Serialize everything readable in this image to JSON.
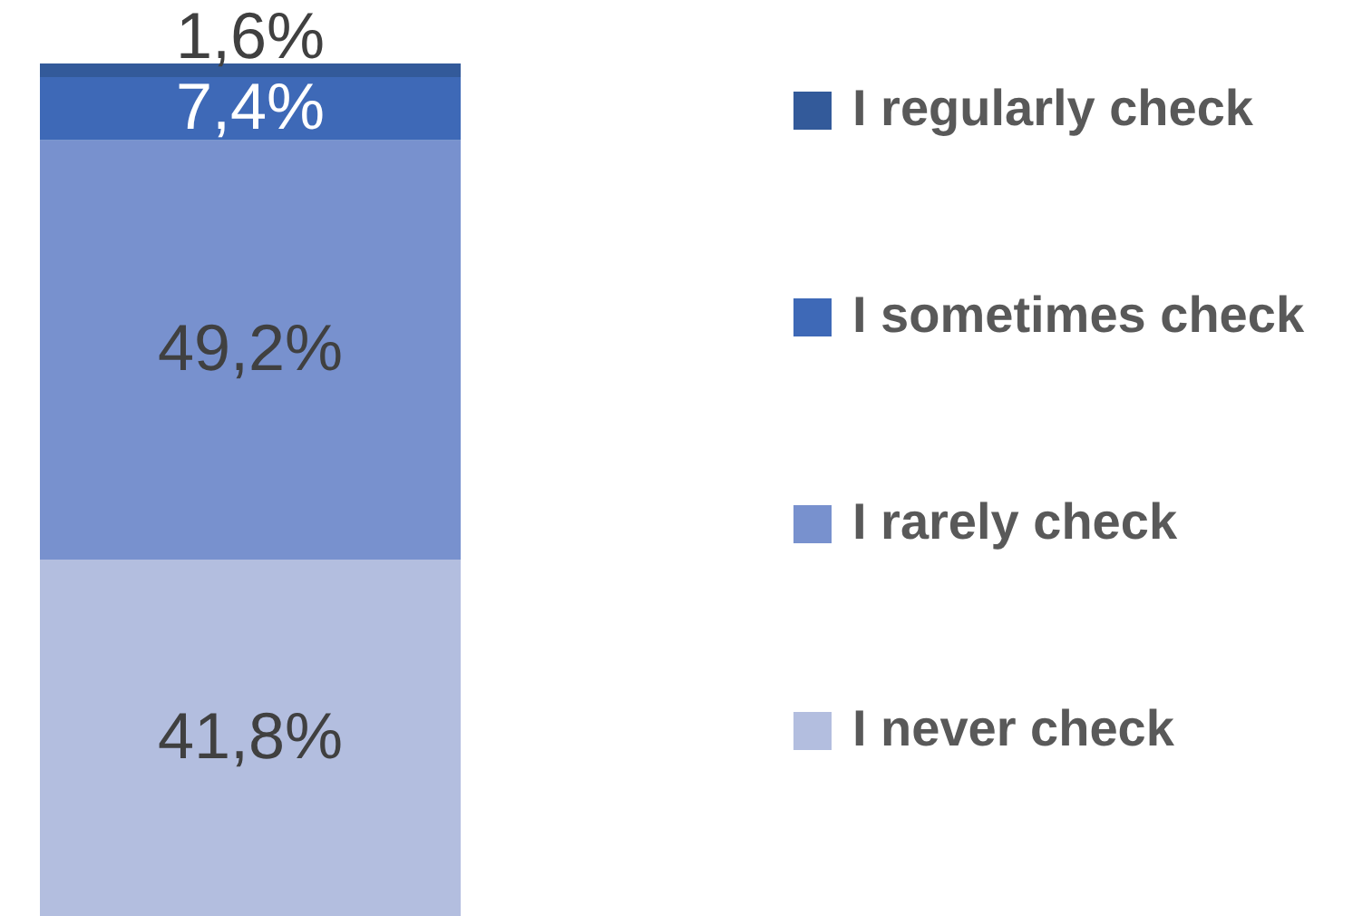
{
  "chart_data": {
    "type": "bar",
    "categories": [
      null
    ],
    "stacked": true,
    "legend": "right",
    "tick_labels": false,
    "series": [
      {
        "name": "I never check",
        "color": "#b3bedf",
        "values": [
          41.8
        ],
        "value_labels": [
          "41,8%"
        ]
      },
      {
        "name": "I rarely check",
        "color": "#7891ce",
        "values": [
          49.2
        ],
        "value_labels": [
          "49,2%"
        ]
      },
      {
        "name": "I sometimes check",
        "color": "#3e69b7",
        "values": [
          7.4
        ],
        "value_labels": [
          "7,4%"
        ]
      },
      {
        "name": "I regularly check",
        "color": "#335a9a",
        "values": [
          1.6
        ],
        "value_labels": [
          "1,6%"
        ]
      }
    ]
  }
}
